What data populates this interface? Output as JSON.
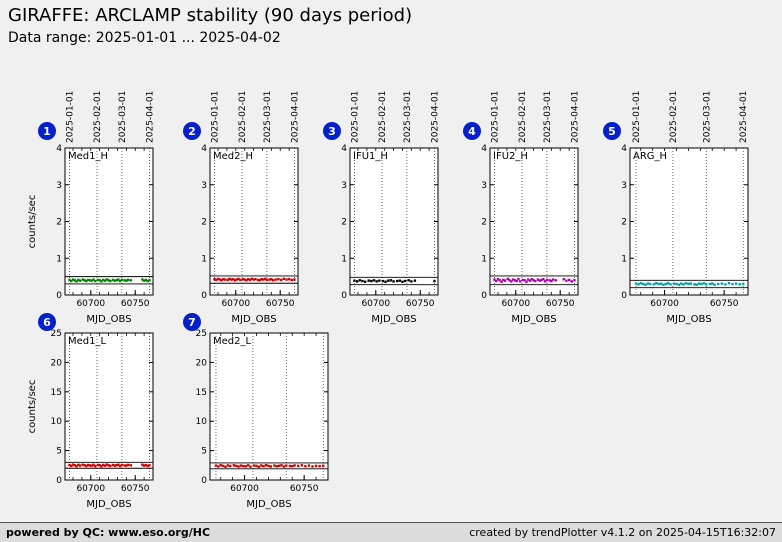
{
  "header": {
    "title": "GIRAFFE: ARCLAMP stability (90 days period)",
    "subtitle": "Data range: 2025-01-01 ... 2025-04-02"
  },
  "footer": {
    "left": "powered by QC: www.eso.org/HC",
    "right": "created by trendPlotter v4.1.2 on 2025-04-15T16:32:07"
  },
  "chart_data": [
    {
      "type": "scatter",
      "index": "1",
      "label": "Med1_H",
      "color": "#008000",
      "ylabel": "counts/sec",
      "xlabel": "MJD_OBS",
      "xlim": [
        60671,
        60770
      ],
      "ylim": [
        0,
        4
      ],
      "yticks": [
        0,
        1,
        2,
        3,
        4
      ],
      "xticks": [
        60700,
        60750
      ],
      "month_lines": [
        60676,
        60707,
        60735,
        60766
      ],
      "month_labels": [
        "2025-01-01",
        "2025-02-01",
        "2025-03-01",
        "2025-04-01"
      ],
      "limits": [
        0.3,
        0.5
      ],
      "wide": false,
      "x": [
        60676,
        60678,
        60680,
        60682,
        60684,
        60686,
        60688,
        60691,
        60693,
        60695,
        60697,
        60699,
        60701,
        60703,
        60705,
        60708,
        60710,
        60712,
        60714,
        60716,
        60718,
        60720,
        60722,
        60725,
        60727,
        60729,
        60731,
        60733,
        60735,
        60738,
        60740,
        60742,
        60745,
        60758,
        60760,
        60762,
        60764,
        60766
      ],
      "y": [
        0.41,
        0.38,
        0.42,
        0.4,
        0.37,
        0.41,
        0.39,
        0.42,
        0.4,
        0.38,
        0.41,
        0.4,
        0.39,
        0.42,
        0.38,
        0.41,
        0.4,
        0.37,
        0.41,
        0.39,
        0.42,
        0.4,
        0.38,
        0.41,
        0.39,
        0.4,
        0.42,
        0.38,
        0.41,
        0.4,
        0.39,
        0.41,
        0.4,
        0.42,
        0.39,
        0.41,
        0.38,
        0.4
      ]
    },
    {
      "type": "scatter",
      "index": "2",
      "label": "Med2_H",
      "color": "#cc0000",
      "ylabel": "",
      "xlabel": "MJD_OBS",
      "xlim": [
        60671,
        60770
      ],
      "ylim": [
        0,
        4
      ],
      "yticks": [
        0,
        1,
        2,
        3,
        4
      ],
      "xticks": [
        60700,
        60750
      ],
      "month_lines": [
        60676,
        60707,
        60735,
        60766
      ],
      "month_labels": [
        "2025-01-01",
        "2025-02-01",
        "2025-03-01",
        "2025-04-01"
      ],
      "limits": [
        0.32,
        0.52
      ],
      "wide": false,
      "x": [
        60676,
        60678,
        60680,
        60682,
        60684,
        60686,
        60688,
        60691,
        60693,
        60695,
        60697,
        60699,
        60701,
        60703,
        60705,
        60708,
        60710,
        60712,
        60714,
        60716,
        60718,
        60720,
        60722,
        60725,
        60727,
        60729,
        60731,
        60733,
        60735,
        60738,
        60740,
        60742,
        60745,
        60748,
        60751,
        60754,
        60757,
        60760,
        60763,
        60766
      ],
      "y": [
        0.43,
        0.41,
        0.44,
        0.42,
        0.4,
        0.43,
        0.42,
        0.41,
        0.44,
        0.42,
        0.43,
        0.4,
        0.42,
        0.44,
        0.41,
        0.43,
        0.42,
        0.4,
        0.43,
        0.41,
        0.44,
        0.42,
        0.43,
        0.41,
        0.4,
        0.43,
        0.42,
        0.44,
        0.41,
        0.42,
        0.43,
        0.4,
        0.42,
        0.43,
        0.41,
        0.44,
        0.42,
        0.43,
        0.41,
        0.42
      ]
    },
    {
      "type": "scatter",
      "index": "3",
      "label": "IFU1_H",
      "color": "#000000",
      "ylabel": "",
      "xlabel": "MJD_OBS",
      "xlim": [
        60671,
        60770
      ],
      "ylim": [
        0,
        4
      ],
      "yticks": [
        0,
        1,
        2,
        3,
        4
      ],
      "xticks": [
        60700,
        60750
      ],
      "month_lines": [
        60676,
        60707,
        60735,
        60766
      ],
      "month_labels": [
        "2025-01-01",
        "2025-02-01",
        "2025-03-01",
        "2025-04-01"
      ],
      "limits": [
        0.28,
        0.48
      ],
      "wide": false,
      "x": [
        60676,
        60679,
        60682,
        60685,
        60688,
        60692,
        60695,
        60698,
        60701,
        60704,
        60708,
        60711,
        60714,
        60717,
        60720,
        60724,
        60727,
        60730,
        60733,
        60737,
        60740,
        60744,
        60766
      ],
      "y": [
        0.39,
        0.37,
        0.4,
        0.38,
        0.36,
        0.39,
        0.38,
        0.4,
        0.37,
        0.39,
        0.38,
        0.36,
        0.39,
        0.4,
        0.37,
        0.38,
        0.39,
        0.36,
        0.38,
        0.4,
        0.37,
        0.39,
        0.38
      ]
    },
    {
      "type": "scatter",
      "index": "4",
      "label": "IFU2_H",
      "color": "#aa00aa",
      "ylabel": "",
      "xlabel": "MJD_OBS",
      "xlim": [
        60671,
        60770
      ],
      "ylim": [
        0,
        4
      ],
      "yticks": [
        0,
        1,
        2,
        3,
        4
      ],
      "xticks": [
        60700,
        60750
      ],
      "month_lines": [
        60676,
        60707,
        60735,
        60766
      ],
      "month_labels": [
        "2025-01-01",
        "2025-02-01",
        "2025-03-01",
        "2025-04-01"
      ],
      "limits": [
        0.28,
        0.52
      ],
      "wide": false,
      "x": [
        60676,
        60678,
        60680,
        60682,
        60684,
        60686,
        60688,
        60691,
        60693,
        60695,
        60697,
        60699,
        60701,
        60703,
        60705,
        60708,
        60710,
        60712,
        60714,
        60716,
        60718,
        60720,
        60722,
        60725,
        60727,
        60729,
        60731,
        60733,
        60735,
        60738,
        60740,
        60742,
        60745,
        60754,
        60757,
        60760,
        60763,
        60766
      ],
      "y": [
        0.42,
        0.38,
        0.43,
        0.4,
        0.36,
        0.41,
        0.39,
        0.44,
        0.4,
        0.37,
        0.42,
        0.4,
        0.38,
        0.43,
        0.37,
        0.41,
        0.4,
        0.36,
        0.42,
        0.39,
        0.43,
        0.4,
        0.38,
        0.42,
        0.39,
        0.41,
        0.43,
        0.37,
        0.41,
        0.4,
        0.38,
        0.42,
        0.4,
        0.43,
        0.39,
        0.41,
        0.37,
        0.4
      ]
    },
    {
      "type": "scatter",
      "index": "5",
      "label": "ARG_H",
      "color": "#00a0a0",
      "ylabel": "",
      "xlabel": "MJD_OBS",
      "xlim": [
        60671,
        60770
      ],
      "ylim": [
        0,
        4
      ],
      "yticks": [
        0,
        1,
        2,
        3,
        4
      ],
      "xticks": [
        60700,
        60750
      ],
      "month_lines": [
        60676,
        60707,
        60735,
        60766
      ],
      "month_labels": [
        "2025-01-01",
        "2025-02-01",
        "2025-03-01",
        "2025-04-01"
      ],
      "limits": [
        0.2,
        0.4
      ],
      "wide": true,
      "x": [
        60676,
        60678,
        60680,
        60682,
        60684,
        60686,
        60688,
        60691,
        60693,
        60695,
        60697,
        60699,
        60701,
        60703,
        60705,
        60708,
        60710,
        60712,
        60714,
        60716,
        60718,
        60720,
        60722,
        60725,
        60727,
        60729,
        60731,
        60733,
        60735,
        60738,
        60740,
        60742,
        60745,
        60748,
        60751,
        60754,
        60757,
        60760,
        60763,
        60766
      ],
      "y": [
        0.31,
        0.29,
        0.32,
        0.3,
        0.28,
        0.31,
        0.3,
        0.29,
        0.32,
        0.3,
        0.31,
        0.28,
        0.3,
        0.32,
        0.29,
        0.31,
        0.3,
        0.28,
        0.31,
        0.29,
        0.32,
        0.3,
        0.31,
        0.29,
        0.28,
        0.31,
        0.3,
        0.32,
        0.29,
        0.3,
        0.31,
        0.28,
        0.3,
        0.31,
        0.29,
        0.32,
        0.3,
        0.31,
        0.29,
        0.3
      ]
    },
    {
      "type": "scatter",
      "index": "6",
      "label": "Med1_L",
      "color": "#cc0000",
      "ylabel": "counts/sec",
      "xlabel": "MJD_OBS",
      "xlim": [
        60671,
        60770
      ],
      "ylim": [
        0,
        25
      ],
      "yticks": [
        0,
        5,
        10,
        15,
        20,
        25
      ],
      "xticks": [
        60700,
        60750
      ],
      "month_lines": [
        60676,
        60707,
        60735,
        60766
      ],
      "limits": [
        2.0,
        3.0
      ],
      "wide": false,
      "x": [
        60676,
        60678,
        60680,
        60682,
        60684,
        60686,
        60688,
        60691,
        60693,
        60695,
        60697,
        60699,
        60701,
        60703,
        60705,
        60708,
        60710,
        60712,
        60714,
        60716,
        60718,
        60720,
        60722,
        60725,
        60727,
        60729,
        60731,
        60733,
        60735,
        60738,
        60740,
        60742,
        60745,
        60758,
        60760,
        60762,
        60764,
        60766
      ],
      "y": [
        2.55,
        2.4,
        2.62,
        2.5,
        2.35,
        2.58,
        2.45,
        2.6,
        2.5,
        2.38,
        2.55,
        2.48,
        2.42,
        2.6,
        2.36,
        2.56,
        2.5,
        2.34,
        2.57,
        2.44,
        2.62,
        2.5,
        2.4,
        2.56,
        2.43,
        2.52,
        2.6,
        2.38,
        2.55,
        2.48,
        2.45,
        2.57,
        2.5,
        2.6,
        2.44,
        2.56,
        2.4,
        2.5
      ]
    },
    {
      "type": "scatter",
      "index": "7",
      "label": "Med2_L",
      "color": "#cc0000",
      "ylabel": "",
      "xlabel": "MJD_OBS",
      "xlim": [
        60671,
        60770
      ],
      "ylim": [
        0,
        25
      ],
      "yticks": [
        0,
        5,
        10,
        15,
        20,
        25
      ],
      "xticks": [
        60700,
        60750
      ],
      "month_lines": [
        60676,
        60707,
        60735,
        60766
      ],
      "limits": [
        1.9,
        2.9
      ],
      "wide": true,
      "x": [
        60676,
        60678,
        60680,
        60682,
        60684,
        60686,
        60688,
        60691,
        60693,
        60695,
        60697,
        60699,
        60701,
        60703,
        60705,
        60708,
        60710,
        60712,
        60714,
        60716,
        60718,
        60720,
        60722,
        60725,
        60727,
        60729,
        60731,
        60733,
        60735,
        60738,
        60740,
        60742,
        60745,
        60748,
        60751,
        60754,
        60757,
        60760,
        60763,
        60766
      ],
      "y": [
        2.45,
        2.3,
        2.52,
        2.4,
        2.25,
        2.48,
        2.38,
        2.5,
        2.4,
        2.28,
        2.45,
        2.36,
        2.32,
        2.5,
        2.26,
        2.46,
        2.4,
        2.24,
        2.47,
        2.34,
        2.52,
        2.4,
        2.3,
        2.46,
        2.33,
        2.42,
        2.5,
        2.28,
        2.45,
        2.38,
        2.35,
        2.47,
        2.4,
        2.5,
        2.34,
        2.46,
        2.3,
        2.4,
        2.36,
        2.42
      ]
    }
  ]
}
